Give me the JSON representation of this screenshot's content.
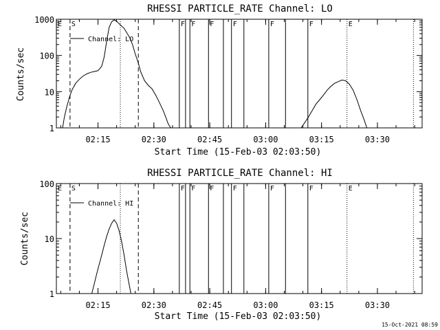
{
  "chart_data": [
    {
      "type": "line",
      "title": "RHESSI PARTICLE_RATE Channel: LO",
      "xlabel": "Start Time (15-Feb-03 02:03:50)",
      "ylabel": "Counts/sec",
      "yscale": "log",
      "ylim": [
        1,
        1000
      ],
      "xlim": [
        "02:03:50",
        "03:42:00"
      ],
      "x_ticks": [
        "02:15",
        "02:30",
        "02:45",
        "03:00",
        "03:15",
        "03:30"
      ],
      "y_ticks": [
        "1",
        "10",
        "100",
        "1000"
      ],
      "legend": "Channel: LO",
      "series": [
        {
          "points": [
            [
              "02:05:30",
              1
            ],
            [
              "02:06:00",
              2
            ],
            [
              "02:06:40",
              4
            ],
            [
              "02:07:20",
              7
            ],
            [
              "02:08:00",
              11
            ],
            [
              "02:09:00",
              17
            ],
            [
              "02:10:00",
              22
            ],
            [
              "02:11:00",
              27
            ],
            [
              "02:12:00",
              31
            ],
            [
              "02:13:00",
              34
            ],
            [
              "02:14:00",
              36
            ],
            [
              "02:15:00",
              38
            ],
            [
              "02:16:00",
              50
            ],
            [
              "02:16:40",
              90
            ],
            [
              "02:17:20",
              250
            ],
            [
              "02:18:00",
              600
            ],
            [
              "02:18:40",
              850
            ],
            [
              "02:19:20",
              960
            ],
            [
              "02:20:00",
              880
            ],
            [
              "02:21:00",
              700
            ],
            [
              "02:22:00",
              560
            ],
            [
              "02:23:00",
              380
            ],
            [
              "02:23:40",
              290
            ],
            [
              "02:24:20",
              190
            ],
            [
              "02:25:00",
              110
            ],
            [
              "02:25:40",
              70
            ],
            [
              "02:26:30",
              35
            ],
            [
              "02:27:30",
              20
            ],
            [
              "02:28:30",
              15
            ],
            [
              "02:29:30",
              12
            ],
            [
              "02:30:30",
              8
            ],
            [
              "02:31:30",
              5
            ],
            [
              "02:32:30",
              3
            ],
            [
              "02:33:10",
              2
            ],
            [
              "02:33:50",
              1.3
            ],
            [
              "02:34:30",
              1
            ]
          ]
        },
        {
          "points": [
            [
              "03:09:30",
              1
            ],
            [
              "03:10:30",
              1.4
            ],
            [
              "03:11:30",
              2
            ],
            [
              "03:12:30",
              3
            ],
            [
              "03:13:30",
              4.5
            ],
            [
              "03:14:30",
              6
            ],
            [
              "03:15:30",
              8
            ],
            [
              "03:16:30",
              11
            ],
            [
              "03:17:30",
              14
            ],
            [
              "03:18:30",
              17
            ],
            [
              "03:19:30",
              19
            ],
            [
              "03:20:30",
              21
            ],
            [
              "03:21:30",
              20
            ],
            [
              "03:22:30",
              16
            ],
            [
              "03:23:30",
              11
            ],
            [
              "03:24:30",
              6
            ],
            [
              "03:25:30",
              3
            ],
            [
              "03:26:30",
              1.6
            ],
            [
              "03:27:10",
              1
            ]
          ]
        }
      ],
      "markers": [
        {
          "time": "02:03:50",
          "style": "solid",
          "label": "E"
        },
        {
          "time": "02:07:30",
          "style": "dashed",
          "label": "S"
        },
        {
          "time": "02:21:00",
          "style": "dotted",
          "label": ""
        },
        {
          "time": "02:25:50",
          "style": "dashed",
          "label": ""
        },
        {
          "time": "02:36:50",
          "style": "solid",
          "label": "F"
        },
        {
          "time": "02:38:30",
          "style": "solid",
          "label": ""
        },
        {
          "time": "02:39:40",
          "style": "solid",
          "label": "F"
        },
        {
          "time": "02:44:40",
          "style": "solid",
          "label": "F"
        },
        {
          "time": "02:48:40",
          "style": "solid",
          "label": ""
        },
        {
          "time": "02:50:50",
          "style": "solid",
          "label": "F"
        },
        {
          "time": "02:54:10",
          "style": "solid",
          "label": ""
        },
        {
          "time": "03:00:50",
          "style": "solid",
          "label": "F"
        },
        {
          "time": "03:05:20",
          "style": "solid",
          "label": ""
        },
        {
          "time": "03:11:20",
          "style": "solid",
          "label": "F"
        },
        {
          "time": "03:21:50",
          "style": "dotted",
          "label": "E"
        },
        {
          "time": "03:39:40",
          "style": "dotted",
          "label": ""
        }
      ]
    },
    {
      "type": "line",
      "title": "RHESSI PARTICLE_RATE Channel: HI",
      "xlabel": "Start Time (15-Feb-03 02:03:50)",
      "ylabel": "Counts/sec",
      "yscale": "log",
      "ylim": [
        1,
        100
      ],
      "xlim": [
        "02:03:50",
        "03:42:00"
      ],
      "x_ticks": [
        "02:15",
        "02:30",
        "02:45",
        "03:00",
        "03:15",
        "03:30"
      ],
      "y_ticks": [
        "1",
        "10",
        "100"
      ],
      "legend": "Channel: HI",
      "series": [
        {
          "points": [
            [
              "02:13:20",
              1
            ],
            [
              "02:14:00",
              1.5
            ],
            [
              "02:14:40",
              2.3
            ],
            [
              "02:15:20",
              3.4
            ],
            [
              "02:16:00",
              5
            ],
            [
              "02:16:40",
              7.5
            ],
            [
              "02:17:20",
              11
            ],
            [
              "02:18:00",
              15
            ],
            [
              "02:18:40",
              19
            ],
            [
              "02:19:20",
              22
            ],
            [
              "02:20:00",
              19
            ],
            [
              "02:20:40",
              14
            ],
            [
              "02:21:20",
              9
            ],
            [
              "02:22:00",
              5
            ],
            [
              "02:22:40",
              2.6
            ],
            [
              "02:23:20",
              1.5
            ],
            [
              "02:23:50",
              1
            ]
          ]
        }
      ],
      "markers": [
        {
          "time": "02:03:50",
          "style": "solid",
          "label": "E"
        },
        {
          "time": "02:07:30",
          "style": "dashed",
          "label": "S"
        },
        {
          "time": "02:21:00",
          "style": "dotted",
          "label": ""
        },
        {
          "time": "02:25:50",
          "style": "dashed",
          "label": ""
        },
        {
          "time": "02:36:50",
          "style": "solid",
          "label": "F"
        },
        {
          "time": "02:38:30",
          "style": "solid",
          "label": ""
        },
        {
          "time": "02:39:40",
          "style": "solid",
          "label": "F"
        },
        {
          "time": "02:44:40",
          "style": "solid",
          "label": "F"
        },
        {
          "time": "02:48:40",
          "style": "solid",
          "label": ""
        },
        {
          "time": "02:50:50",
          "style": "solid",
          "label": "F"
        },
        {
          "time": "02:54:10",
          "style": "solid",
          "label": ""
        },
        {
          "time": "03:00:50",
          "style": "solid",
          "label": "F"
        },
        {
          "time": "03:05:20",
          "style": "solid",
          "label": ""
        },
        {
          "time": "03:11:20",
          "style": "solid",
          "label": "F"
        },
        {
          "time": "03:21:50",
          "style": "dotted",
          "label": "E"
        },
        {
          "time": "03:39:40",
          "style": "dotted",
          "label": ""
        }
      ]
    }
  ],
  "timestamp": "15-Oct-2021 08:59"
}
